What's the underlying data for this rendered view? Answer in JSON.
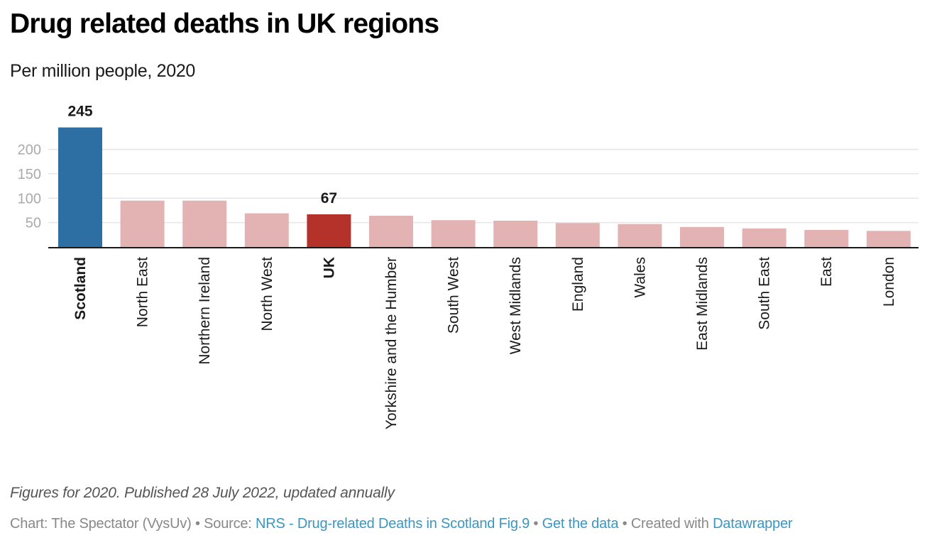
{
  "header": {
    "title": "Drug related deaths in UK regions",
    "subtitle": "Per million people, 2020"
  },
  "footer": {
    "notes": "Figures for 2020. Published 28 July 2022, updated annually",
    "chart_by_prefix": "Chart: The Spectator (VysUv)",
    "source_prefix": "Source:",
    "source_link": "NRS - Drug-related Deaths in Scotland Fig.9",
    "get_data_link": "Get the data",
    "created_with_prefix": "Created with",
    "datawrapper_link": "Datawrapper",
    "separator": "•"
  },
  "colors": {
    "highlight_scotland": "#2d6ea3",
    "highlight_uk": "#b5322b",
    "default_bar": "#e2b3b2",
    "gridline": "#e6e6e6",
    "axis": "#1a1a1a",
    "link": "#3a96c2"
  },
  "chart_data": {
    "type": "bar",
    "title": "Drug related deaths in UK regions",
    "subtitle": "Per million people, 2020",
    "xlabel": "",
    "ylabel": "",
    "ylim": [
      0,
      245
    ],
    "yticks": [
      50,
      100,
      150,
      200
    ],
    "grid": true,
    "legend": "none",
    "categories": [
      "Scotland",
      "North East",
      "Northern Ireland",
      "North West",
      "UK",
      "Yorkshire and the Humber",
      "South West",
      "West Midlands",
      "England",
      "Wales",
      "East Midlands",
      "South East",
      "East",
      "London"
    ],
    "values": [
      245,
      95,
      95,
      69,
      67,
      64,
      55,
      54,
      49,
      47,
      41,
      38,
      35,
      33
    ],
    "highlighted": [
      {
        "category": "Scotland",
        "color": "#2d6ea3",
        "label": "245",
        "bold_tick": true
      },
      {
        "category": "UK",
        "color": "#b5322b",
        "label": "67",
        "bold_tick": true
      }
    ]
  }
}
